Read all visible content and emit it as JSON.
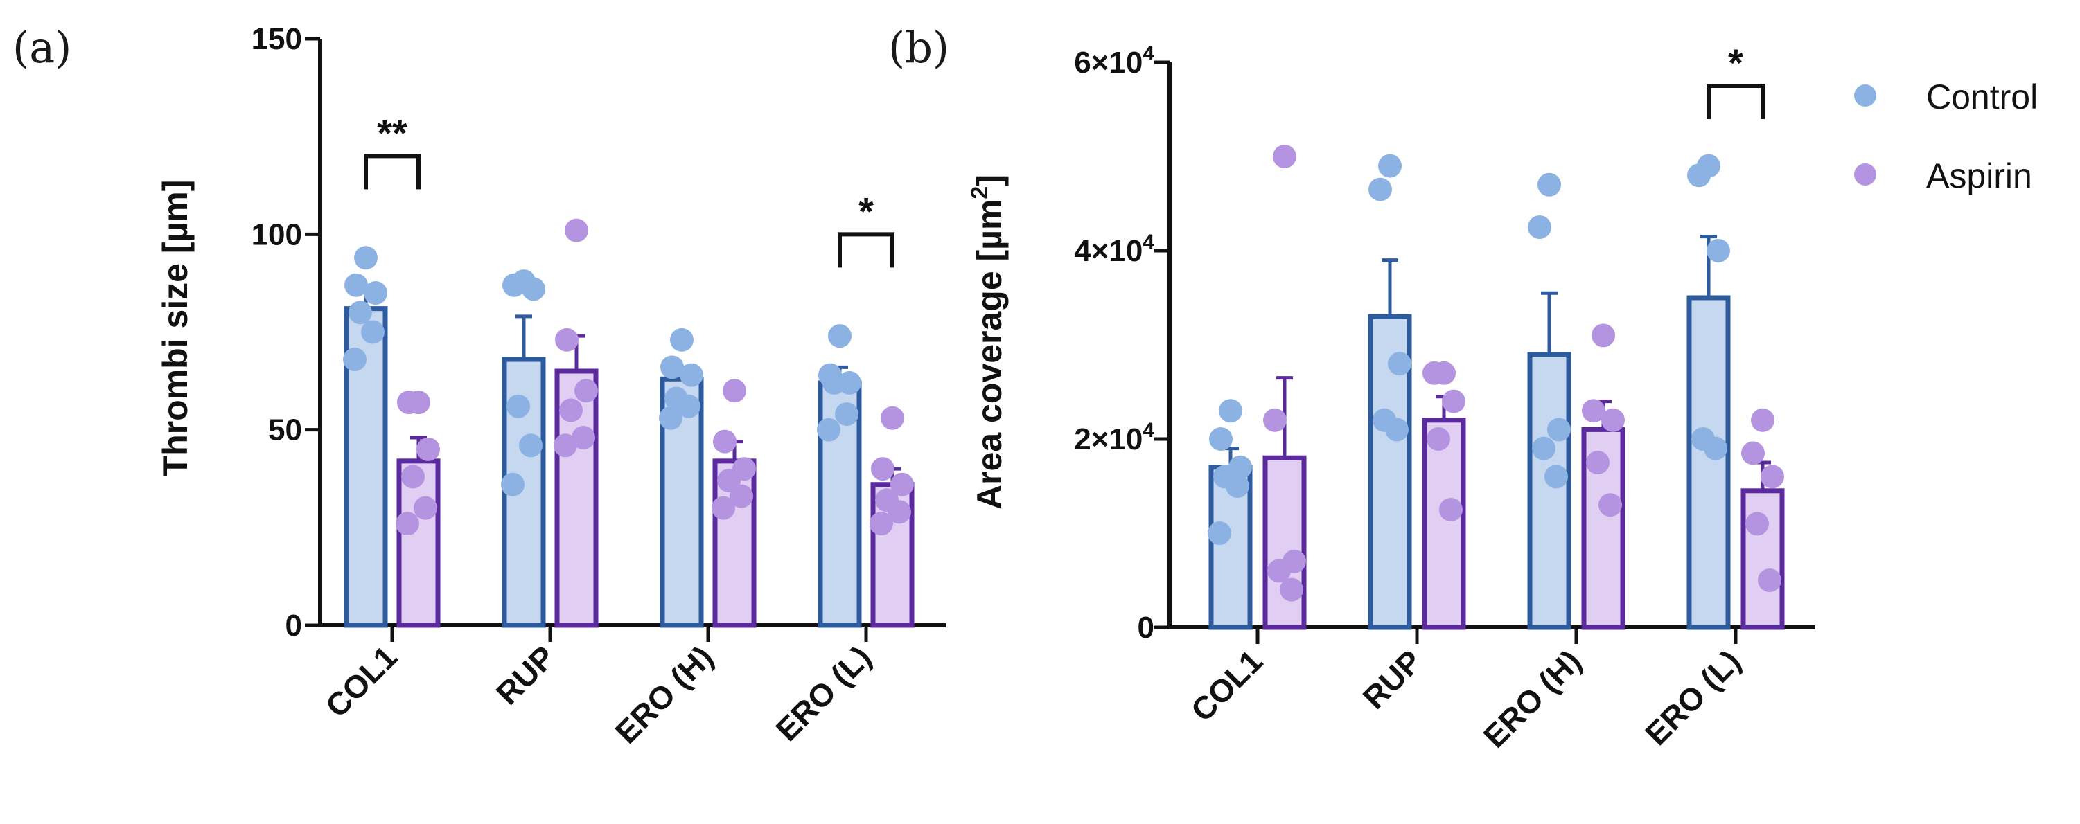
{
  "figure": {
    "panel_a_label": "(a)",
    "panel_b_label": "(b)"
  },
  "legend": {
    "control_label": "Control",
    "aspirin_label": "Aspirin",
    "control_color": "#8cb1e3",
    "aspirin_color": "#b493e0"
  },
  "colors": {
    "control_bar_fill": "#c5d8f0",
    "control_bar_edge": "#2e5b9e",
    "aspirin_bar_fill": "#e0cff2",
    "aspirin_bar_edge": "#5b2a9e",
    "control_dot": "#8cb1e3",
    "aspirin_dot": "#b493e0"
  },
  "chart_data": [
    {
      "type": "bar",
      "panel": "(a)",
      "ylabel": "Thrombi size [µm]",
      "ylim": [
        0,
        150
      ],
      "yticks": [
        0,
        50,
        100,
        150
      ],
      "ytick_labels": [
        "0",
        "50",
        "100",
        "150"
      ],
      "categories": [
        "COL1",
        "RUP",
        "ERO (H)",
        "ERO (L)"
      ],
      "series": [
        {
          "name": "Control",
          "values": [
            81,
            68,
            63,
            62
          ],
          "errors": [
            5,
            11,
            3,
            4
          ],
          "points": [
            [
              94,
              87,
              85,
              80,
              75,
              68
            ],
            [
              88,
              87,
              86,
              56,
              46,
              36
            ],
            [
              73,
              66,
              64,
              58,
              56,
              53
            ],
            [
              74,
              64,
              62,
              62,
              54,
              50
            ]
          ]
        },
        {
          "name": "Aspirin",
          "values": [
            42,
            65,
            42,
            36
          ],
          "errors": [
            6,
            9,
            5,
            4
          ],
          "points": [
            [
              57,
              57,
              45,
              38,
              30,
              26
            ],
            [
              101,
              73,
              60,
              55,
              48,
              46
            ],
            [
              60,
              47,
              40,
              37,
              33,
              30
            ],
            [
              53,
              40,
              36,
              32,
              29,
              26
            ]
          ]
        }
      ],
      "significance": [
        {
          "category": "COL1",
          "label": "**",
          "y": 120
        },
        {
          "category": "ERO (L)",
          "label": "*",
          "y": 100
        }
      ]
    },
    {
      "type": "bar",
      "panel": "(b)",
      "ylabel": "Area coverage [µm",
      "ylabel_sup": "2",
      "ylabel_end": "]",
      "ylim": [
        0,
        60000
      ],
      "yticks": [
        0,
        20000,
        40000,
        60000
      ],
      "ytick_labels": [
        "0",
        "2×10",
        "4×10",
        "6×10"
      ],
      "ytick_sups": [
        "",
        "4",
        "4",
        "4"
      ],
      "categories": [
        "COL1",
        "RUP",
        "ERO (H)",
        "ERO (L)"
      ],
      "series": [
        {
          "name": "Control",
          "values": [
            17000,
            33000,
            29000,
            35000
          ],
          "errors": [
            2000,
            6000,
            6500,
            6500
          ],
          "points": [
            [
              23000,
              20000,
              17000,
              16000,
              15000,
              10000
            ],
            [
              49000,
              46500,
              28000,
              22000,
              21000
            ],
            [
              47000,
              42500,
              21000,
              19000,
              16000
            ],
            [
              49000,
              48000,
              40000,
              20000,
              19000
            ]
          ]
        },
        {
          "name": "Aspirin",
          "values": [
            18000,
            22000,
            21000,
            14500
          ],
          "errors": [
            8500,
            2500,
            3000,
            3000
          ],
          "points": [
            [
              50000,
              22000,
              7000,
              6000,
              4000
            ],
            [
              27000,
              27000,
              24000,
              20000,
              12500
            ],
            [
              31000,
              23000,
              22000,
              17500,
              13000
            ],
            [
              22000,
              18500,
              16000,
              11000,
              5000
            ]
          ]
        }
      ],
      "significance": [
        {
          "category": "ERO (L)",
          "label": "*",
          "y": 57500
        }
      ]
    }
  ]
}
